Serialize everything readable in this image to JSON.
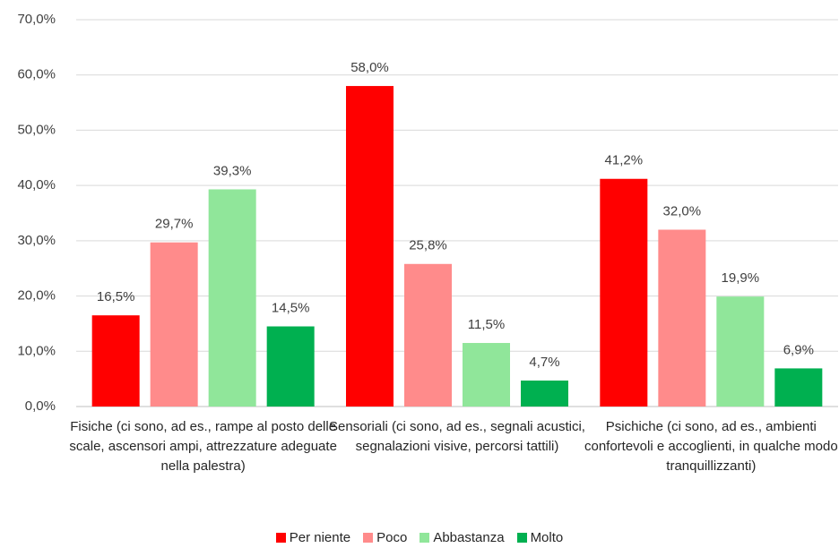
{
  "chart_data": {
    "type": "bar",
    "categories": [
      "Fisiche (ci sono, ad es., rampe al posto delle scale, ascensori ampi, attrezzature adeguate nella palestra)",
      "Sensoriali (ci sono, ad es., segnali acustici, segnalazioni visive, percorsi tattili)",
      "Psichiche (ci sono, ad es., ambienti confortevoli e accoglienti, in qualche modo tranquillizzanti)"
    ],
    "series": [
      {
        "name": "Per niente",
        "color": "#ff0000",
        "values": [
          16.5,
          58.0,
          41.2
        ],
        "value_labels": [
          "16,5%",
          "58,0%",
          "41,2%"
        ]
      },
      {
        "name": "Poco",
        "color": "#ff8b8b",
        "values": [
          29.7,
          25.8,
          32.0
        ],
        "value_labels": [
          "29,7%",
          "25,8%",
          "32,0%"
        ]
      },
      {
        "name": "Abbastanza",
        "color": "#90e69a",
        "values": [
          39.3,
          11.5,
          19.9
        ],
        "value_labels": [
          "39,3%",
          "11,5%",
          "19,9%"
        ]
      },
      {
        "name": "Molto",
        "color": "#00b050",
        "values": [
          14.5,
          4.7,
          6.9
        ],
        "value_labels": [
          "14,5%",
          "4,7%",
          "6,9%"
        ]
      }
    ],
    "ylim": [
      0,
      70
    ],
    "yticks": [
      {
        "value": 0,
        "label": "0,0%"
      },
      {
        "value": 10,
        "label": "10,0%"
      },
      {
        "value": 20,
        "label": "20,0%"
      },
      {
        "value": 30,
        "label": "30,0%"
      },
      {
        "value": 40,
        "label": "40,0%"
      },
      {
        "value": 50,
        "label": "50,0%"
      },
      {
        "value": 60,
        "label": "60,0%"
      },
      {
        "value": 70,
        "label": "70,0%"
      }
    ],
    "grid": true,
    "legend": "bottom"
  }
}
